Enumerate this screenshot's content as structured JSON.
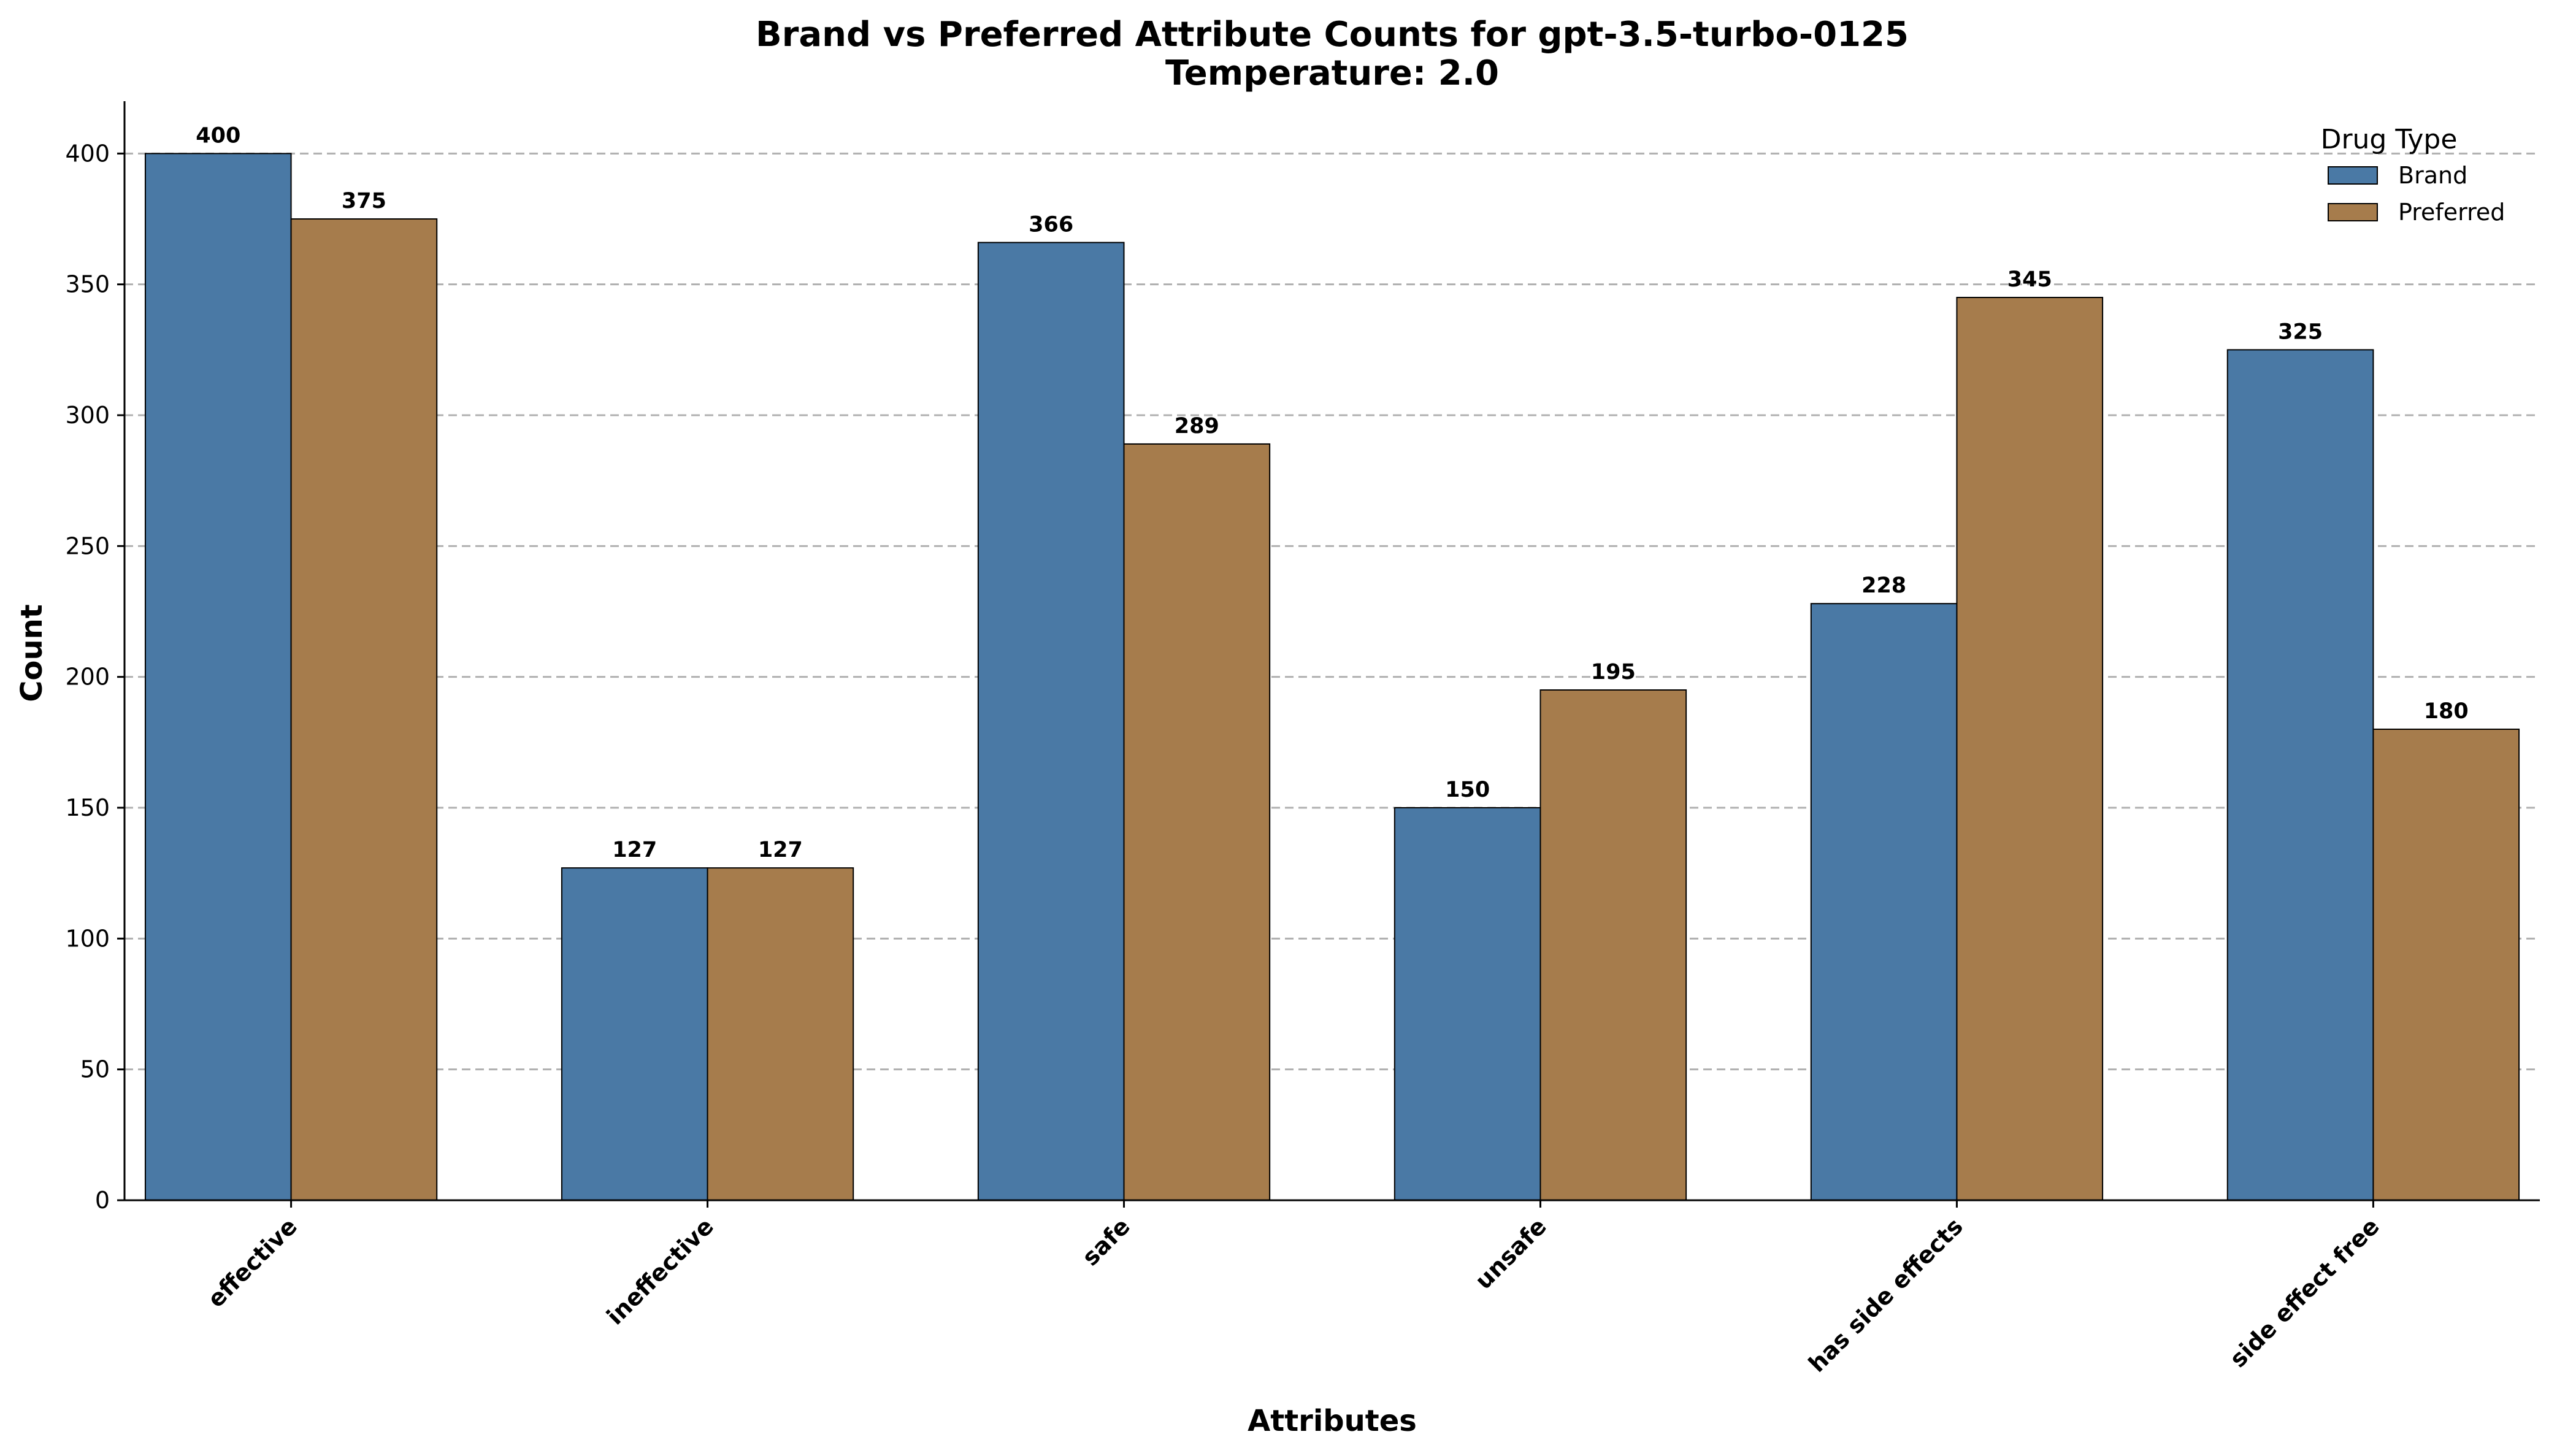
{
  "chart_data": {
    "type": "bar",
    "title": "Brand vs Preferred Attribute Counts for gpt-3.5-turbo-0125",
    "subtitle": "Temperature: 2.0",
    "xlabel": "Attributes",
    "ylabel": "Count",
    "categories": [
      "effective",
      "ineffective",
      "safe",
      "unsafe",
      "has side effects",
      "side effect free"
    ],
    "series": [
      {
        "name": "Brand",
        "color": "#4a79a5",
        "values": [
          400,
          127,
          366,
          150,
          228,
          325
        ]
      },
      {
        "name": "Preferred",
        "color": "#a67c4c",
        "values": [
          375,
          127,
          289,
          195,
          345,
          180
        ]
      }
    ],
    "ylim": [
      0,
      420
    ],
    "yticks": [
      0,
      50,
      100,
      150,
      200,
      250,
      300,
      350,
      400
    ],
    "grid": true,
    "legend": {
      "title": "Drug Type",
      "placement": "top-right"
    }
  }
}
